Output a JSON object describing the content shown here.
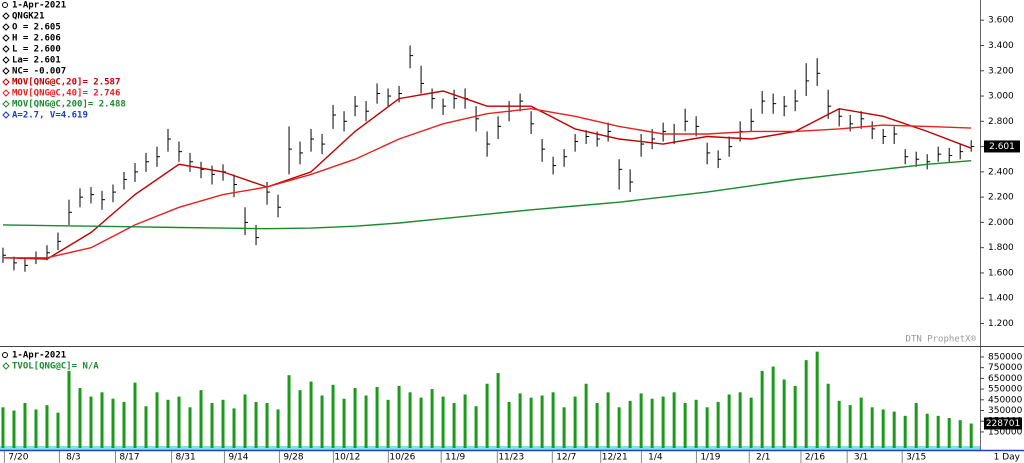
{
  "chart_data": [
    {
      "type": "ohlc",
      "info": [
        {
          "text": "1-Apr-2021",
          "color": "#000000"
        },
        {
          "text": "QNGK21",
          "color": "#000000"
        },
        {
          "text": "O = 2.605",
          "color": "#000000"
        },
        {
          "text": "H = 2.606",
          "color": "#000000"
        },
        {
          "text": "L = 2.600",
          "color": "#000000"
        },
        {
          "text": "La= 2.601",
          "color": "#000000"
        },
        {
          "text": "NC= -0.007",
          "color": "#000000"
        },
        {
          "text": "MOV[QNG@C,20]= 2.587",
          "color": "#c00000"
        },
        {
          "text": "MOV[QNG@C,40]= 2.746",
          "color": "#e82020"
        },
        {
          "text": "MOV[QNG@C,200]= 2.488",
          "color": "#1a8a30"
        },
        {
          "text": "A=2.7, V=4.619",
          "color": "#1a3ad0"
        }
      ],
      "watermark": "DTN ProphetX®",
      "last_label": "2.601",
      "bar_color": "#000000",
      "x": [
        0,
        1,
        2,
        3,
        4,
        5,
        6,
        7,
        8,
        9,
        10,
        11,
        12,
        13,
        14,
        15,
        16,
        17,
        18,
        19,
        20,
        21,
        22,
        23,
        24,
        25,
        26,
        27,
        28,
        29,
        30,
        31,
        32,
        33,
        34,
        35,
        36,
        37,
        38,
        39,
        40,
        41,
        42,
        43,
        44,
        45,
        46,
        47,
        48,
        49,
        50,
        51,
        52,
        53,
        54,
        55,
        56,
        57,
        58,
        59,
        60,
        61,
        62,
        63,
        64,
        65,
        66,
        67,
        68,
        69,
        70,
        71,
        72,
        73,
        74,
        75,
        76,
        77,
        78,
        79,
        80,
        81,
        82,
        83,
        84,
        85,
        86,
        87,
        88
      ],
      "high": [
        1.8,
        1.73,
        1.71,
        1.77,
        1.82,
        1.92,
        2.18,
        2.27,
        2.28,
        2.25,
        2.3,
        2.4,
        2.47,
        2.55,
        2.6,
        2.74,
        2.64,
        2.55,
        2.48,
        2.45,
        2.46,
        2.38,
        2.12,
        1.98,
        2.32,
        2.22,
        2.76,
        2.64,
        2.74,
        2.7,
        2.93,
        2.88,
        3.0,
        2.96,
        3.1,
        3.06,
        3.08,
        3.4,
        3.24,
        3.06,
        2.98,
        3.05,
        3.06,
        2.92,
        2.72,
        2.84,
        2.96,
        3.02,
        2.88,
        2.66,
        2.52,
        2.58,
        2.7,
        2.73,
        2.72,
        2.79,
        2.5,
        2.42,
        2.7,
        2.74,
        2.79,
        2.78,
        2.9,
        2.84,
        2.63,
        2.57,
        2.68,
        2.8,
        2.9,
        3.04,
        3.02,
        3.0,
        3.05,
        3.26,
        3.3,
        3.05,
        2.9,
        2.85,
        2.88,
        2.8,
        2.74,
        2.76,
        2.58,
        2.56,
        2.54,
        2.6,
        2.59,
        2.62,
        2.65
      ],
      "low": [
        1.68,
        1.62,
        1.61,
        1.67,
        1.7,
        1.78,
        1.98,
        2.12,
        2.15,
        2.1,
        2.16,
        2.26,
        2.32,
        2.4,
        2.44,
        2.56,
        2.48,
        2.4,
        2.35,
        2.3,
        2.33,
        2.2,
        1.9,
        1.82,
        2.14,
        2.04,
        2.38,
        2.46,
        2.56,
        2.54,
        2.74,
        2.72,
        2.84,
        2.8,
        2.94,
        2.92,
        2.95,
        3.22,
        3.02,
        2.9,
        2.85,
        2.9,
        2.9,
        2.72,
        2.52,
        2.66,
        2.8,
        2.88,
        2.7,
        2.48,
        2.38,
        2.44,
        2.56,
        2.62,
        2.6,
        2.64,
        2.26,
        2.24,
        2.52,
        2.58,
        2.64,
        2.62,
        2.72,
        2.68,
        2.46,
        2.43,
        2.52,
        2.64,
        2.72,
        2.86,
        2.86,
        2.84,
        2.88,
        3.0,
        3.08,
        2.82,
        2.76,
        2.72,
        2.74,
        2.66,
        2.62,
        2.62,
        2.46,
        2.44,
        2.42,
        2.48,
        2.47,
        2.5,
        2.56
      ],
      "close": [
        1.74,
        1.68,
        1.66,
        1.72,
        1.76,
        1.85,
        2.08,
        2.2,
        2.22,
        2.18,
        2.24,
        2.34,
        2.4,
        2.48,
        2.52,
        2.66,
        2.56,
        2.48,
        2.42,
        2.38,
        2.4,
        2.3,
        2.0,
        1.88,
        2.24,
        2.12,
        2.58,
        2.55,
        2.66,
        2.62,
        2.85,
        2.8,
        2.92,
        2.88,
        3.02,
        3.0,
        3.02,
        3.32,
        3.1,
        2.98,
        2.92,
        2.98,
        2.98,
        2.82,
        2.62,
        2.76,
        2.88,
        2.96,
        2.78,
        2.58,
        2.45,
        2.52,
        2.64,
        2.68,
        2.66,
        2.72,
        2.42,
        2.32,
        2.62,
        2.66,
        2.72,
        2.7,
        2.8,
        2.76,
        2.55,
        2.5,
        2.6,
        2.72,
        2.8,
        2.96,
        2.94,
        2.92,
        2.96,
        3.12,
        3.18,
        2.92,
        2.84,
        2.78,
        2.82,
        2.74,
        2.68,
        2.7,
        2.52,
        2.5,
        2.48,
        2.54,
        2.53,
        2.56,
        2.601
      ],
      "lines": [
        {
          "name": "MOV[QNG@C,20]= 2.587",
          "color": "#c00000",
          "x": [
            0,
            4,
            8,
            12,
            16,
            20,
            24,
            28,
            32,
            36,
            40,
            44,
            48,
            52,
            56,
            60,
            64,
            68,
            72,
            76,
            80,
            84,
            88
          ],
          "values": [
            1.72,
            1.71,
            1.92,
            2.22,
            2.46,
            2.4,
            2.28,
            2.4,
            2.72,
            2.98,
            3.04,
            2.92,
            2.92,
            2.74,
            2.66,
            2.62,
            2.68,
            2.66,
            2.72,
            2.9,
            2.84,
            2.72,
            2.587
          ]
        },
        {
          "name": "MOV[QNG@C,40]= 2.746",
          "color": "#e82020",
          "x": [
            0,
            4,
            8,
            12,
            16,
            20,
            24,
            28,
            32,
            36,
            40,
            44,
            48,
            52,
            56,
            60,
            64,
            68,
            72,
            76,
            80,
            84,
            88
          ],
          "values": [
            1.72,
            1.72,
            1.8,
            1.98,
            2.12,
            2.22,
            2.28,
            2.38,
            2.5,
            2.66,
            2.78,
            2.86,
            2.9,
            2.84,
            2.76,
            2.7,
            2.7,
            2.72,
            2.72,
            2.74,
            2.77,
            2.76,
            2.746
          ]
        },
        {
          "name": "MOV[QNG@C,200]= 2.488",
          "color": "#1a8a30",
          "x": [
            0,
            4,
            8,
            12,
            16,
            20,
            24,
            28,
            32,
            36,
            40,
            44,
            48,
            52,
            56,
            60,
            64,
            68,
            72,
            76,
            80,
            84,
            88
          ],
          "values": [
            1.98,
            1.975,
            1.97,
            1.965,
            1.96,
            1.955,
            1.95,
            1.955,
            1.97,
            1.995,
            2.03,
            2.065,
            2.1,
            2.13,
            2.16,
            2.2,
            2.24,
            2.29,
            2.34,
            2.38,
            2.42,
            2.46,
            2.488
          ]
        }
      ],
      "xlim": [
        -0.27,
        88.8
      ],
      "ylim": [
        1.03,
        3.76
      ],
      "yticks": [
        {
          "value": 1.2,
          "label": "1.200"
        },
        {
          "value": 1.4,
          "label": "1.400"
        },
        {
          "value": 1.6,
          "label": "1.600"
        },
        {
          "value": 1.8,
          "label": "1.800"
        },
        {
          "value": 2.0,
          "label": "2.000"
        },
        {
          "value": 2.2,
          "label": "2.200"
        },
        {
          "value": 2.4,
          "label": "2.400"
        },
        {
          "value": 2.6,
          "label": "2.600"
        },
        {
          "value": 2.8,
          "label": "2.800"
        },
        {
          "value": 3.0,
          "label": "3.000"
        },
        {
          "value": 3.2,
          "label": "3.200"
        },
        {
          "value": 3.4,
          "label": "3.400"
        },
        {
          "value": 3.6,
          "label": "3.600"
        }
      ]
    },
    {
      "type": "bar",
      "info": [
        {
          "text": "1-Apr-2021",
          "color": "#000000"
        },
        {
          "text": "TVOL[QNG@C]= N/A",
          "color": "#1a8a30"
        }
      ],
      "last_label": "228701",
      "color": "#1c9a1c",
      "x": [
        0,
        1,
        2,
        3,
        4,
        5,
        6,
        7,
        8,
        9,
        10,
        11,
        12,
        13,
        14,
        15,
        16,
        17,
        18,
        19,
        20,
        21,
        22,
        23,
        24,
        25,
        26,
        27,
        28,
        29,
        30,
        31,
        32,
        33,
        34,
        35,
        36,
        37,
        38,
        39,
        40,
        41,
        42,
        43,
        44,
        45,
        46,
        47,
        48,
        49,
        50,
        51,
        52,
        53,
        54,
        55,
        56,
        57,
        58,
        59,
        60,
        61,
        62,
        63,
        64,
        65,
        66,
        67,
        68,
        69,
        70,
        71,
        72,
        73,
        74,
        75,
        76,
        77,
        78,
        79,
        80,
        81,
        82,
        83,
        84,
        85,
        86,
        87,
        88
      ],
      "values": [
        380000,
        350000,
        420000,
        360000,
        400000,
        330000,
        720000,
        560000,
        480000,
        520000,
        460000,
        430000,
        610000,
        390000,
        520000,
        450000,
        480000,
        380000,
        540000,
        420000,
        450000,
        370000,
        500000,
        430000,
        420000,
        360000,
        680000,
        540000,
        620000,
        490000,
        590000,
        460000,
        560000,
        490000,
        570000,
        450000,
        580000,
        520000,
        470000,
        550000,
        480000,
        420000,
        500000,
        390000,
        600000,
        700000,
        430000,
        510000,
        470000,
        490000,
        520000,
        380000,
        480000,
        600000,
        420000,
        520000,
        380000,
        440000,
        510000,
        460000,
        480000,
        520000,
        420000,
        450000,
        380000,
        430000,
        500000,
        520000,
        470000,
        720000,
        760000,
        640000,
        580000,
        820000,
        900000,
        600000,
        440000,
        400000,
        470000,
        380000,
        360000,
        340000,
        300000,
        420000,
        320000,
        300000,
        280000,
        260000,
        228701
      ],
      "xlim": [
        -0.27,
        88.8
      ],
      "ylim": [
        0,
        915000
      ],
      "yticks": [
        150000,
        250000,
        350000,
        450000,
        550000,
        650000,
        750000,
        850000
      ],
      "xticks": [
        {
          "value": 1.4,
          "label": "7/20"
        },
        {
          "value": 6.4,
          "label": "8/3"
        },
        {
          "value": 11.5,
          "label": "8/17"
        },
        {
          "value": 16.6,
          "label": "8/31"
        },
        {
          "value": 21.4,
          "label": "9/14"
        },
        {
          "value": 26.4,
          "label": "9/28"
        },
        {
          "value": 31.3,
          "label": "10/12"
        },
        {
          "value": 36.3,
          "label": "10/26"
        },
        {
          "value": 41.1,
          "label": "11/9"
        },
        {
          "value": 46.2,
          "label": "11/23"
        },
        {
          "value": 51.2,
          "label": "12/7"
        },
        {
          "value": 55.6,
          "label": "12/21"
        },
        {
          "value": 59.3,
          "label": "1/4"
        },
        {
          "value": 64.3,
          "label": "1/19"
        },
        {
          "value": 69.1,
          "label": "2/1"
        },
        {
          "value": 73.8,
          "label": "2/16"
        },
        {
          "value": 78,
          "label": "3/1"
        },
        {
          "value": 83,
          "label": "3/15"
        }
      ],
      "period": "1 Day"
    }
  ]
}
